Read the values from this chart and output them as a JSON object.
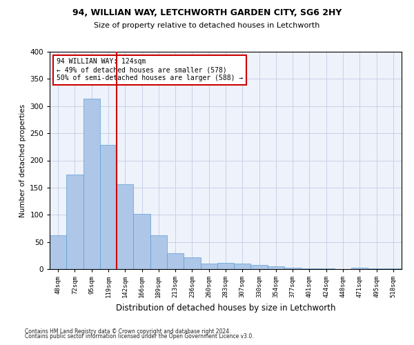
{
  "title1": "94, WILLIAN WAY, LETCHWORTH GARDEN CITY, SG6 2HY",
  "title2": "Size of property relative to detached houses in Letchworth",
  "xlabel": "Distribution of detached houses by size in Letchworth",
  "ylabel": "Number of detached properties",
  "categories": [
    "48sqm",
    "72sqm",
    "95sqm",
    "119sqm",
    "142sqm",
    "166sqm",
    "189sqm",
    "213sqm",
    "236sqm",
    "260sqm",
    "283sqm",
    "307sqm",
    "330sqm",
    "354sqm",
    "377sqm",
    "401sqm",
    "424sqm",
    "448sqm",
    "471sqm",
    "495sqm",
    "518sqm"
  ],
  "values": [
    62,
    174,
    314,
    229,
    156,
    102,
    62,
    29,
    21,
    10,
    11,
    10,
    7,
    5,
    3,
    1,
    1,
    0,
    2,
    1,
    1
  ],
  "bar_color": "#aec6e8",
  "bar_edge_color": "#5a9fd4",
  "vline_x": 3.5,
  "vline_color": "#cc0000",
  "annotation_lines": [
    "94 WILLIAN WAY: 124sqm",
    "← 49% of detached houses are smaller (578)",
    "50% of semi-detached houses are larger (588) →"
  ],
  "annotation_box_color": "#cc0000",
  "ylim": [
    0,
    400
  ],
  "yticks": [
    0,
    50,
    100,
    150,
    200,
    250,
    300,
    350,
    400
  ],
  "footer1": "Contains HM Land Registry data © Crown copyright and database right 2024.",
  "footer2": "Contains public sector information licensed under the Open Government Licence v3.0.",
  "bg_color": "#eef2fa",
  "grid_color": "#c8d0e8"
}
